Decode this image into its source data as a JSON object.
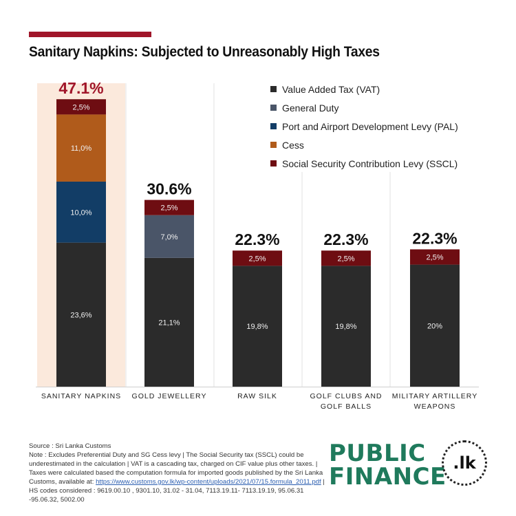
{
  "title": "Sanitary Napkins: Subjected to Unreasonably High Taxes",
  "colors": {
    "accent": "#a0162a",
    "highlight": "#fbe9dc",
    "VAT": "#2b2b2b",
    "General Duty": "#4a5568",
    "PAL": "#123d66",
    "Cess": "#b05b1b",
    "SSCL": "#6e0d12",
    "logo_green": "#1f7a5c"
  },
  "chart_data": {
    "type": "bar",
    "stacked": true,
    "title": "Sanitary Napkins: Subjected to Unreasonably High Taxes",
    "categories": [
      "SANITARY NAPKINS",
      "GOLD JEWELLERY",
      "RAW SILK",
      "GOLF CLUBS AND GOLF BALLS",
      "MILITARY ARTILLERY WEAPONS"
    ],
    "category_lines": [
      [
        "SANITARY NAPKINS"
      ],
      [
        "GOLD JEWELLERY"
      ],
      [
        "RAW SILK"
      ],
      [
        "GOLF CLUBS AND",
        "GOLF BALLS"
      ],
      [
        "MILITARY ARTILLERY",
        "WEAPONS"
      ]
    ],
    "totals": [
      "47.1%",
      "30.6%",
      "22.3%",
      "22.3%",
      "22.3%"
    ],
    "highlight_category": "SANITARY NAPKINS",
    "series": [
      {
        "name": "Value Added Tax (VAT)",
        "key": "VAT",
        "values": [
          23.6,
          21.1,
          19.8,
          19.8,
          20
        ],
        "labels": [
          "23,6%",
          "21,1%",
          "19,8%",
          "19,8%",
          "20%"
        ]
      },
      {
        "name": "General Duty",
        "key": "General Duty",
        "values": [
          0,
          7.0,
          0,
          0,
          0
        ],
        "labels": [
          "",
          "7,0%",
          "",
          "",
          ""
        ]
      },
      {
        "name": "Port and Airport Development Levy (PAL)",
        "key": "PAL",
        "values": [
          10.0,
          0,
          0,
          0,
          0
        ],
        "labels": [
          "10,0%",
          "",
          "",
          "",
          ""
        ]
      },
      {
        "name": "Cess",
        "key": "Cess",
        "values": [
          11.0,
          0,
          0,
          0,
          0
        ],
        "labels": [
          "11,0%",
          "",
          "",
          "",
          ""
        ]
      },
      {
        "name": "Social Security Contribution Levy (SSCL)",
        "key": "SSCL",
        "values": [
          2.5,
          2.5,
          2.5,
          2.5,
          2.5
        ],
        "labels": [
          "2,5%",
          "2,5%",
          "2,5%",
          "2,5%",
          "2,5%"
        ]
      }
    ],
    "legend_position": "top-right",
    "ylim": [
      0,
      50
    ]
  },
  "footer": {
    "source": "Source : Sri Lanka Customs",
    "note_part1": "Note : Excludes Preferential Duty and SG Cess levy | The Social Security tax (SSCL) could be underestimated in the calculation | VAT is a cascading tax, charged on CIF value plus other taxes. | Taxes were calculated based the computation formula for imported goods published by the Sri Lanka Customs, available at: ",
    "link": "https://www.customs.gov.lk/wp-content/uploads/2021/07/15.formula_2011.pdf",
    "note_part2": " | HS codes considered : 9619.00.10 , 9301.10, 31.02 - 31.04, 7113.19.11- 7113.19.19, 95.06.31 -95.06.32, 5002.00"
  },
  "logo": {
    "line1": "PUBLIC",
    "line2": "FINANCE",
    "suffix": ".lk"
  }
}
